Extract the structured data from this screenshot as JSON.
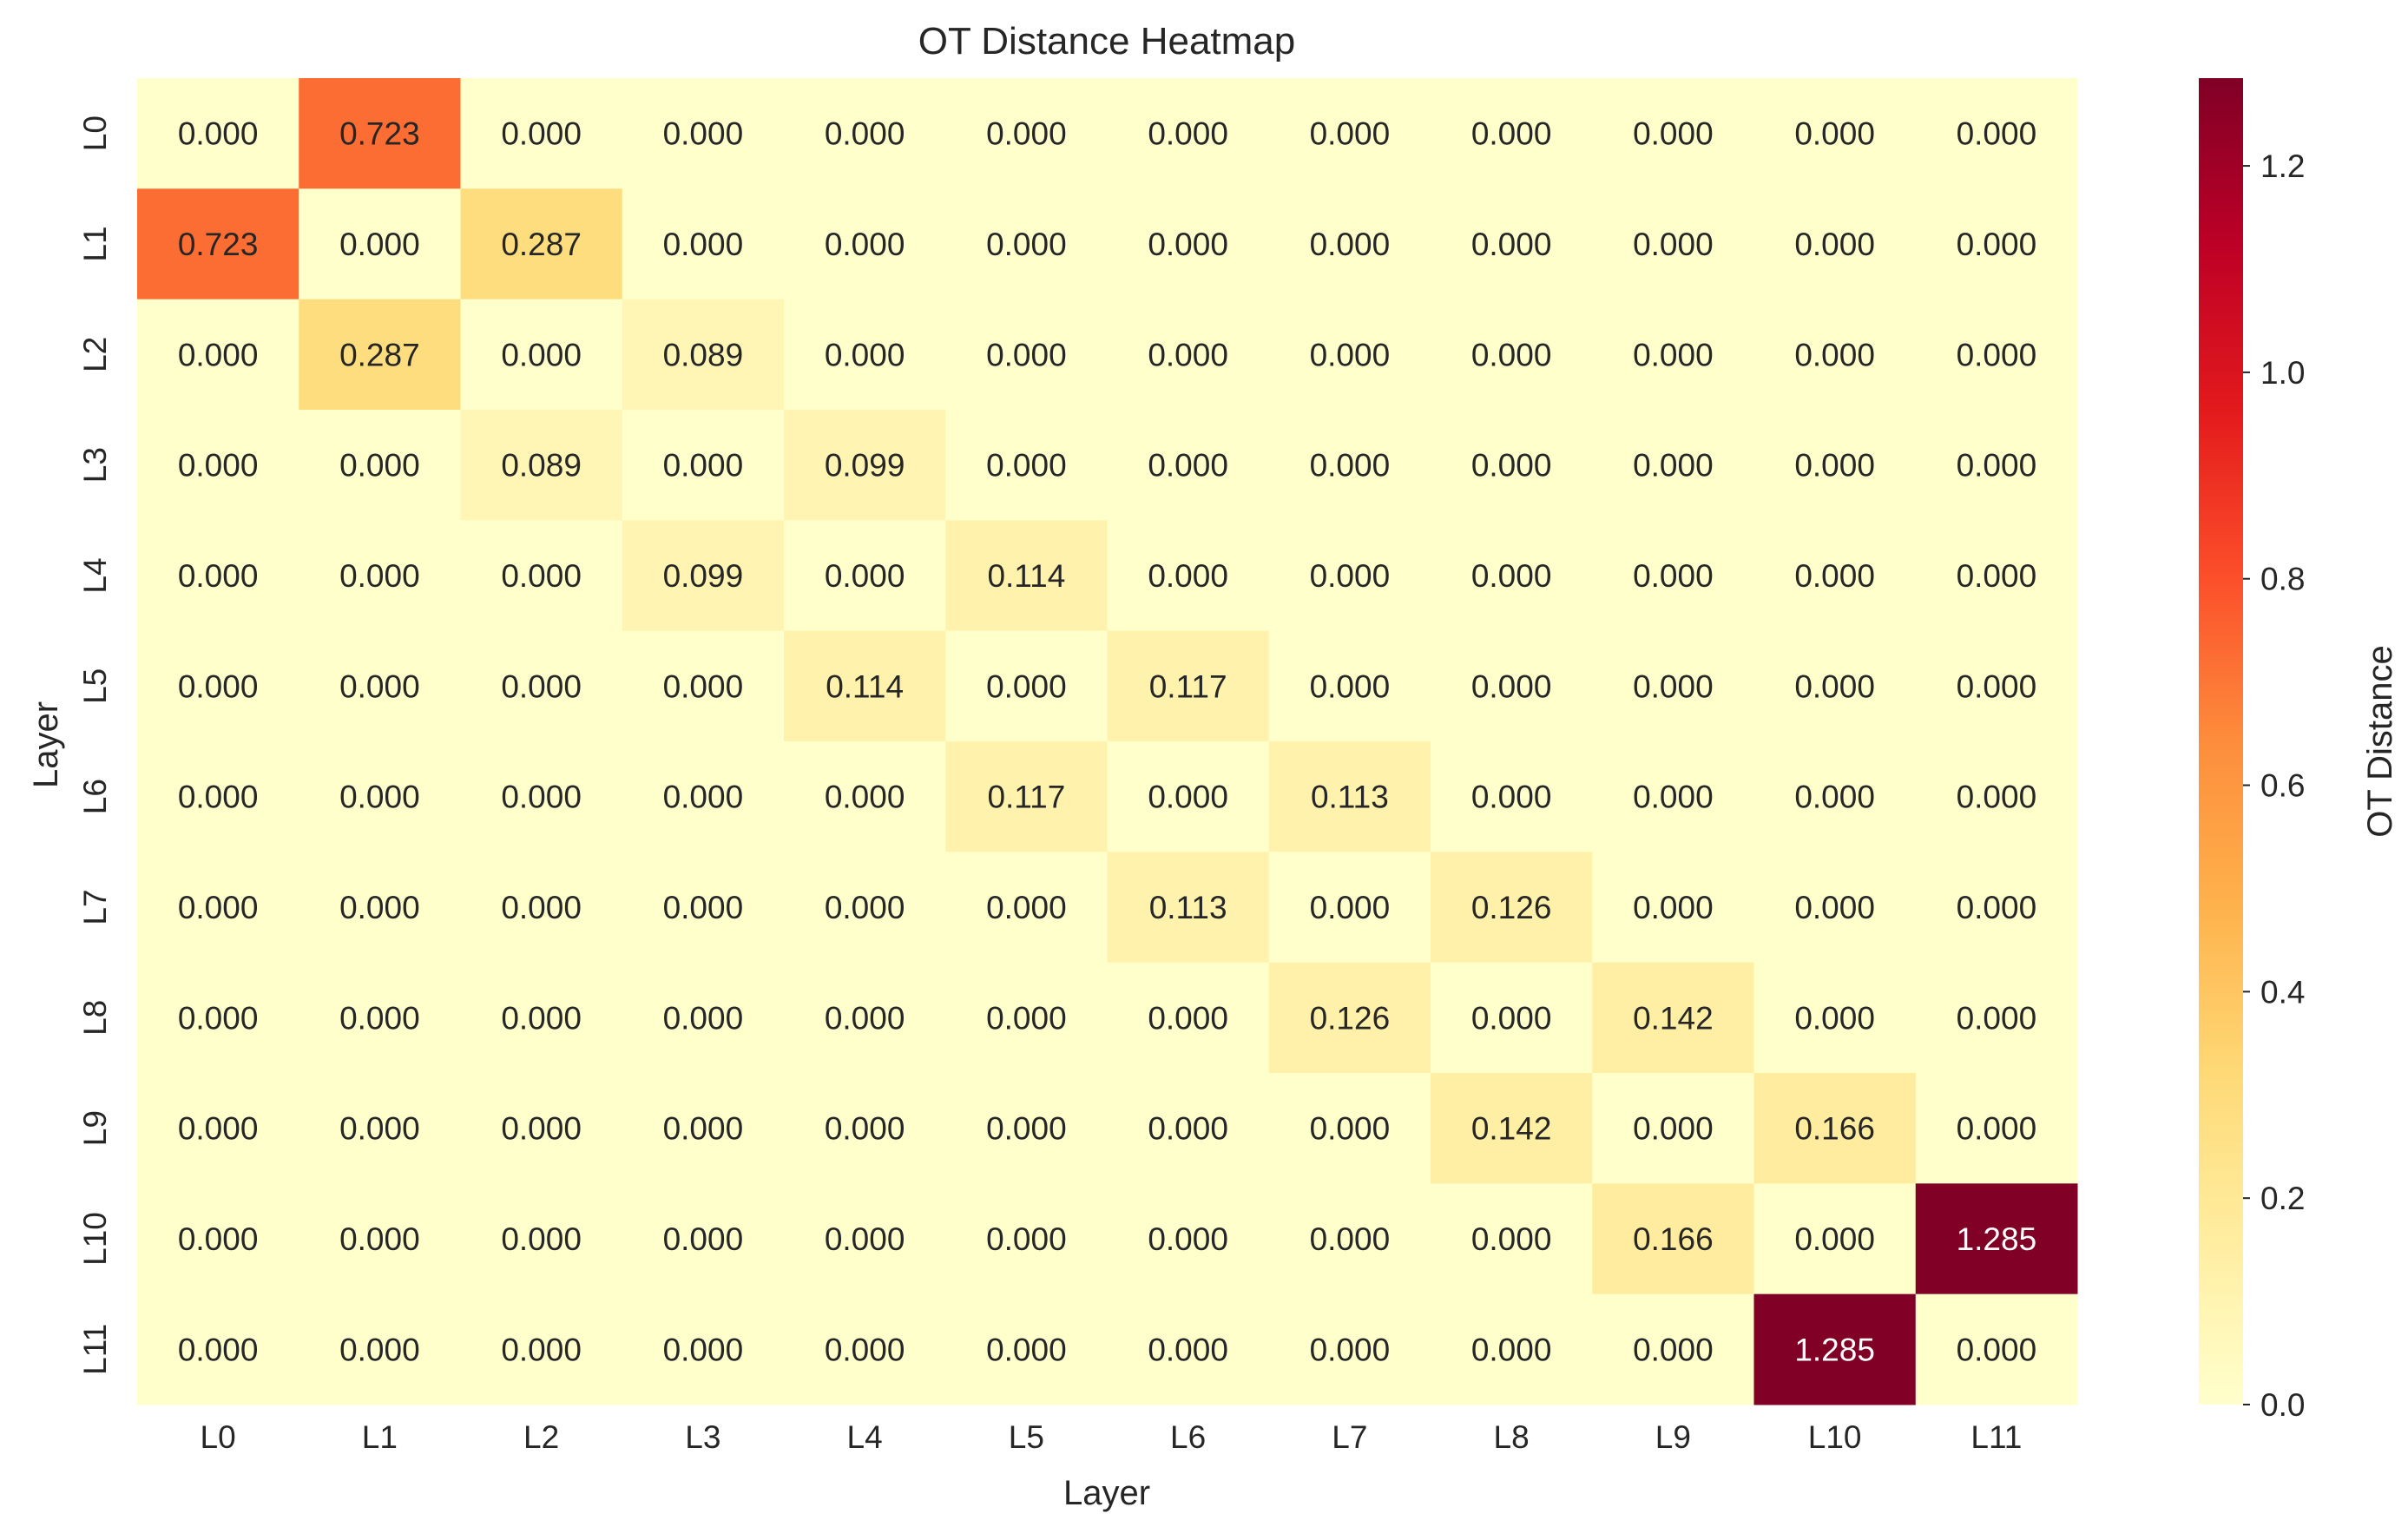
{
  "chart_data": {
    "type": "heatmap",
    "title": "OT Distance Heatmap",
    "xlabel": "Layer",
    "ylabel": "Layer",
    "x_labels": [
      "L0",
      "L1",
      "L2",
      "L3",
      "L4",
      "L5",
      "L6",
      "L7",
      "L8",
      "L9",
      "L10",
      "L11"
    ],
    "y_labels": [
      "L0",
      "L1",
      "L2",
      "L3",
      "L4",
      "L5",
      "L6",
      "L7",
      "L8",
      "L9",
      "L10",
      "L11"
    ],
    "values": [
      [
        0.0,
        0.723,
        0.0,
        0.0,
        0.0,
        0.0,
        0.0,
        0.0,
        0.0,
        0.0,
        0.0,
        0.0
      ],
      [
        0.723,
        0.0,
        0.287,
        0.0,
        0.0,
        0.0,
        0.0,
        0.0,
        0.0,
        0.0,
        0.0,
        0.0
      ],
      [
        0.0,
        0.287,
        0.0,
        0.089,
        0.0,
        0.0,
        0.0,
        0.0,
        0.0,
        0.0,
        0.0,
        0.0
      ],
      [
        0.0,
        0.0,
        0.089,
        0.0,
        0.099,
        0.0,
        0.0,
        0.0,
        0.0,
        0.0,
        0.0,
        0.0
      ],
      [
        0.0,
        0.0,
        0.0,
        0.099,
        0.0,
        0.114,
        0.0,
        0.0,
        0.0,
        0.0,
        0.0,
        0.0
      ],
      [
        0.0,
        0.0,
        0.0,
        0.0,
        0.114,
        0.0,
        0.117,
        0.0,
        0.0,
        0.0,
        0.0,
        0.0
      ],
      [
        0.0,
        0.0,
        0.0,
        0.0,
        0.0,
        0.117,
        0.0,
        0.113,
        0.0,
        0.0,
        0.0,
        0.0
      ],
      [
        0.0,
        0.0,
        0.0,
        0.0,
        0.0,
        0.0,
        0.113,
        0.0,
        0.126,
        0.0,
        0.0,
        0.0
      ],
      [
        0.0,
        0.0,
        0.0,
        0.0,
        0.0,
        0.0,
        0.0,
        0.126,
        0.0,
        0.142,
        0.0,
        0.0
      ],
      [
        0.0,
        0.0,
        0.0,
        0.0,
        0.0,
        0.0,
        0.0,
        0.0,
        0.142,
        0.0,
        0.166,
        0.0
      ],
      [
        0.0,
        0.0,
        0.0,
        0.0,
        0.0,
        0.0,
        0.0,
        0.0,
        0.0,
        0.166,
        0.0,
        1.285
      ],
      [
        0.0,
        0.0,
        0.0,
        0.0,
        0.0,
        0.0,
        0.0,
        0.0,
        0.0,
        0.0,
        1.285,
        0.0
      ]
    ],
    "value_format_decimals": 3,
    "colormap": "YlOrRd",
    "vmin": 0.0,
    "vmax": 1.285,
    "colorbar": {
      "label": "OT Distance",
      "ticks": [
        0.0,
        0.2,
        0.4,
        0.6,
        0.8,
        1.0,
        1.2
      ],
      "tick_labels": [
        "0.0",
        "0.2",
        "0.4",
        "0.6",
        "0.8",
        "1.0",
        "1.2"
      ]
    },
    "colormap_stops": [
      "#ffffcc",
      "#ffeda0",
      "#fed976",
      "#feb24c",
      "#fd8d3c",
      "#fc4e2a",
      "#e31a1c",
      "#bd0026",
      "#800026"
    ]
  }
}
